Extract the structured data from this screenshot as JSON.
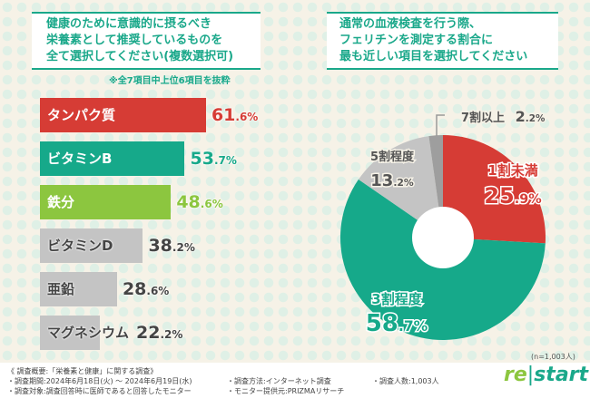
{
  "left_question": [
    "健康のために意識的に摂るべき",
    "栄養素として推奨しているものを",
    "全て選択してください(複数選択可)"
  ],
  "left_note": "※全7項目中上位6項目を抜粋",
  "right_question": [
    "通常の血液検査を行う際、",
    "フェリチンを測定する割合に",
    "最も近しい項目を選択してください"
  ],
  "sample_size": "(n=1,003人)",
  "chart_data": [
    {
      "type": "bar",
      "orientation": "horizontal",
      "unit": "%",
      "categories": [
        "タンパク質",
        "ビタミンB",
        "鉄分",
        "ビタミンD",
        "亜鉛",
        "マグネシウム"
      ],
      "values": [
        61.6,
        53.7,
        48.6,
        38.2,
        28.6,
        22.2
      ],
      "colors": [
        "#d63c35",
        "#16a98a",
        "#8cc63f",
        "#c4c4c4",
        "#c4c4c4",
        "#c4c4c4"
      ],
      "label_colors": [
        "#d63c35",
        "#16a98a",
        "#8cc63f",
        "#444444",
        "#444444",
        "#444444"
      ]
    },
    {
      "type": "pie",
      "donut": true,
      "unit": "%",
      "categories": [
        "1割未満",
        "3割程度",
        "5割程度",
        "7割以上"
      ],
      "values": [
        25.9,
        58.7,
        13.2,
        2.2
      ],
      "colors": [
        "#d63c35",
        "#16a98a",
        "#c4c4c4",
        "#9e9e9e"
      ]
    }
  ],
  "footer": {
    "title": "《 調査概要:「栄養素と健康」に関する調査》",
    "period": "・調査期間:2024年6月18日(火) ～ 2024年6月19日(水)",
    "target": "・調査対象:調査回答時に医師であると回答したモニター",
    "method": "・調査方法:インターネット調査",
    "provider": "・モニター提供元:PRIZMAリサーチ",
    "count": "・調査人数:1,003人",
    "logo_re": "re",
    "logo_start": "start"
  }
}
